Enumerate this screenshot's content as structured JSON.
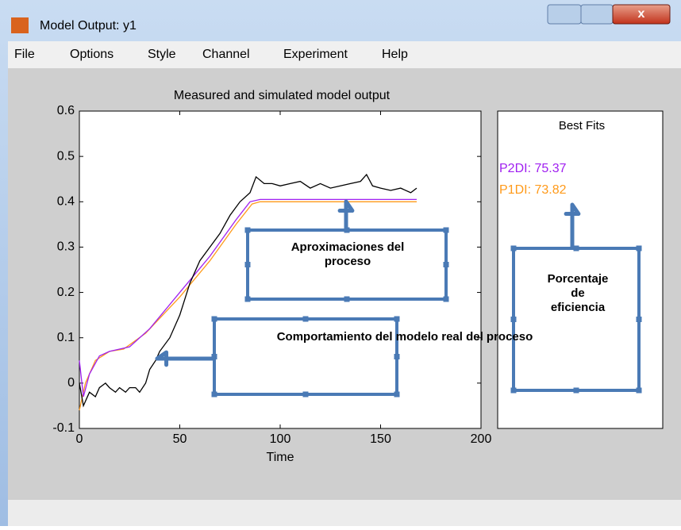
{
  "window": {
    "title": "Model Output: y1",
    "menu": [
      "File",
      "Options",
      "Style",
      "Channel",
      "Experiment",
      "Help"
    ]
  },
  "chart_data": {
    "type": "line",
    "title": "Measured and simulated model output",
    "xlabel": "Time",
    "xlim": [
      0,
      200
    ],
    "xticks": [
      0,
      50,
      100,
      150,
      200
    ],
    "ylim": [
      -0.1,
      0.6
    ],
    "yticks": [
      -0.1,
      0,
      0.1,
      0.2,
      0.3,
      0.4,
      0.5,
      0.6
    ],
    "series": [
      {
        "color": "#000000",
        "x": [
          0,
          2,
          5,
          8,
          10,
          13,
          15,
          18,
          20,
          23,
          25,
          28,
          30,
          33,
          35,
          38,
          40,
          45,
          50,
          55,
          60,
          65,
          70,
          75,
          80,
          85,
          88,
          92,
          96,
          100,
          105,
          110,
          115,
          120,
          125,
          130,
          135,
          140,
          143,
          146,
          150,
          155,
          160,
          165,
          168
        ],
        "values": [
          0.0,
          -0.05,
          -0.02,
          -0.03,
          -0.01,
          0.0,
          -0.01,
          -0.02,
          -0.01,
          -0.02,
          -0.01,
          -0.01,
          -0.02,
          0.0,
          0.03,
          0.05,
          0.07,
          0.1,
          0.15,
          0.22,
          0.27,
          0.3,
          0.33,
          0.37,
          0.4,
          0.42,
          0.455,
          0.44,
          0.44,
          0.435,
          0.44,
          0.445,
          0.43,
          0.44,
          0.43,
          0.435,
          0.44,
          0.445,
          0.46,
          0.435,
          0.43,
          0.425,
          0.43,
          0.42,
          0.43
        ]
      },
      {
        "color": "#a020f0",
        "x": [
          0,
          2,
          5,
          10,
          15,
          20,
          25,
          35,
          50,
          65,
          78,
          85,
          90,
          168
        ],
        "values": [
          0.05,
          -0.03,
          0.02,
          0.06,
          0.07,
          0.075,
          0.08,
          0.12,
          0.2,
          0.28,
          0.36,
          0.4,
          0.405,
          0.405
        ]
      },
      {
        "color": "#ff9a1a",
        "x": [
          0,
          3,
          8,
          15,
          22,
          33,
          50,
          65,
          78,
          86,
          90,
          168
        ],
        "values": [
          -0.06,
          0.0,
          0.05,
          0.07,
          0.075,
          0.11,
          0.19,
          0.27,
          0.35,
          0.395,
          0.4,
          0.4
        ]
      }
    ]
  },
  "best_fits": {
    "title": "Best Fits",
    "entries": [
      {
        "text": "P2DI: 75.37",
        "color": "#a020f0"
      },
      {
        "text": "P1DI: 73.82",
        "color": "#ff9a1a"
      }
    ]
  },
  "annotations": [
    {
      "lines": [
        "Aproximaciones del",
        "proceso"
      ]
    },
    {
      "lines": [
        "Comportamiento del modelo real del proceso"
      ]
    },
    {
      "lines": [
        "Porcentaje",
        "de",
        "eficiencia"
      ]
    }
  ]
}
